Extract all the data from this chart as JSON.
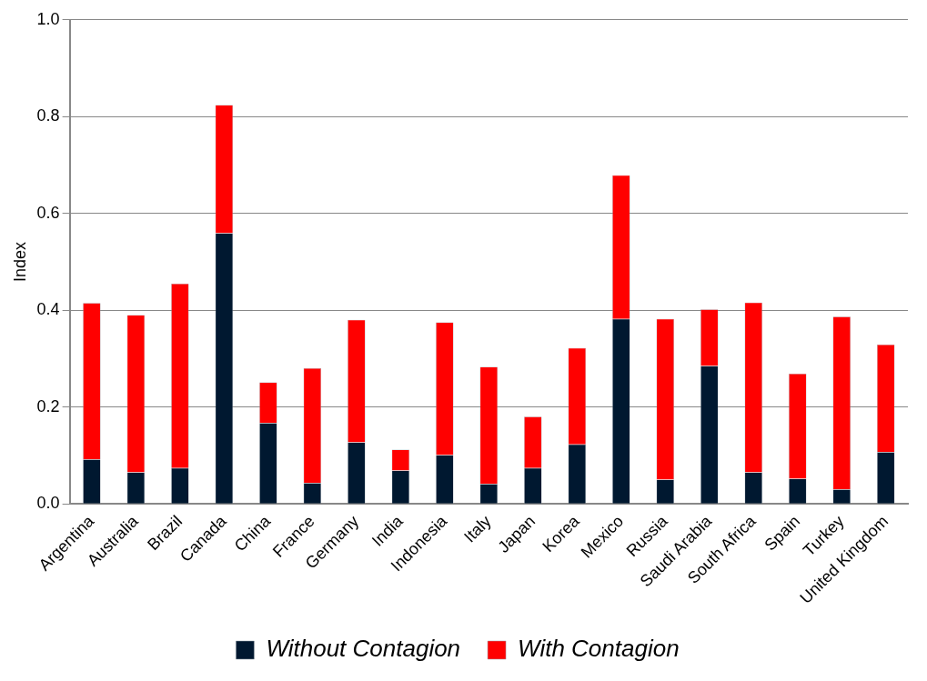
{
  "chart_data": {
    "type": "bar",
    "stacked": true,
    "ylabel": "Index",
    "categories": [
      "Argentina",
      "Australia",
      "Brazil",
      "Canada",
      "China",
      "France",
      "Germany",
      "India",
      "Indonesia",
      "Italy",
      "Japan",
      "Korea",
      "Mexico",
      "Russia",
      "Saudi Arabia",
      "South Africa",
      "Spain",
      "Turkey",
      "United Kingdom"
    ],
    "series": [
      {
        "name": "Without Contagion",
        "color": "#001830",
        "values": [
          0.092,
          0.065,
          0.074,
          0.559,
          0.167,
          0.043,
          0.127,
          0.069,
          0.101,
          0.041,
          0.074,
          0.123,
          0.382,
          0.05,
          0.285,
          0.065,
          0.052,
          0.03,
          0.107
        ]
      },
      {
        "name": "With Contagion",
        "color": "#ff0000",
        "values": [
          0.323,
          0.325,
          0.381,
          0.265,
          0.084,
          0.237,
          0.253,
          0.043,
          0.274,
          0.242,
          0.106,
          0.199,
          0.297,
          0.332,
          0.117,
          0.351,
          0.217,
          0.357,
          0.222
        ]
      }
    ],
    "ylim": [
      0,
      1
    ],
    "yticks": [
      {
        "value": 0,
        "label": "0.0"
      },
      {
        "value": 0.2,
        "label": "0.2"
      },
      {
        "value": 0.4,
        "label": "0.4"
      },
      {
        "value": 0.6,
        "label": "0.6"
      },
      {
        "value": 0.8,
        "label": "0.8"
      },
      {
        "value": 1,
        "label": "1.0"
      }
    ],
    "grid": "y",
    "legend": "bottom"
  }
}
